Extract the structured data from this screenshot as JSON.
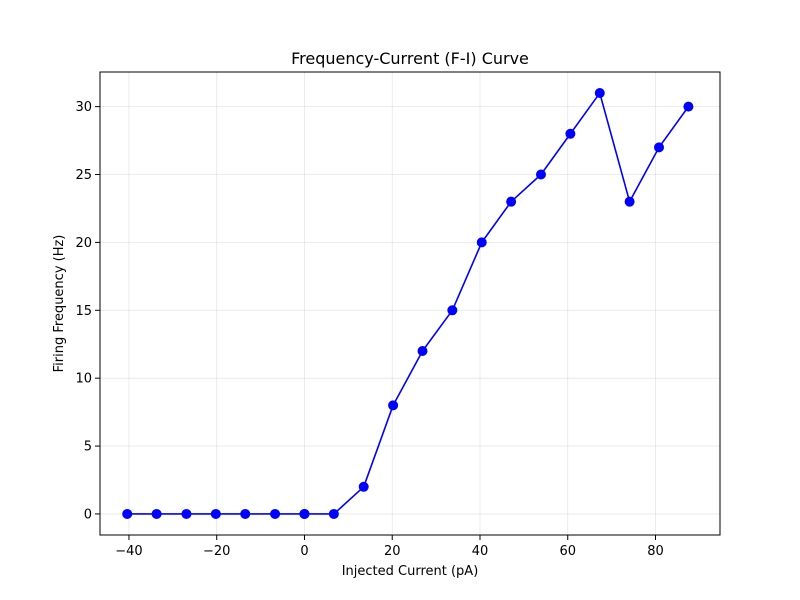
{
  "chart_data": {
    "type": "line",
    "title": "Frequency-Current (F-I) Curve",
    "xlabel": "Injected Current (pA)",
    "ylabel": "Firing Frequency (Hz)",
    "xlim": [
      -46.6,
      94.7
    ],
    "ylim": [
      -1.55,
      32.55
    ],
    "x_ticks": [
      -40,
      -20,
      0,
      20,
      40,
      60,
      80
    ],
    "x_tick_labels": [
      "−40",
      "−20",
      "0",
      "20",
      "40",
      "60",
      "80"
    ],
    "y_ticks": [
      0,
      5,
      10,
      15,
      20,
      25,
      30
    ],
    "y_tick_labels": [
      "0",
      "5",
      "10",
      "15",
      "20",
      "25",
      "30"
    ],
    "grid": true,
    "series": [
      {
        "color": "#0000ff",
        "marker": "circle",
        "x": [
          -40.4,
          -33.7,
          -26.9,
          -20.2,
          -13.5,
          -6.7,
          0,
          0,
          6.7,
          13.5,
          20.2,
          26.9,
          33.7,
          40.4,
          47.1,
          53.9,
          60.6,
          67.3,
          74.1,
          80.8,
          87.5
        ],
        "y": [
          0,
          0,
          0,
          0,
          0,
          0,
          0,
          0,
          0,
          2,
          8,
          12,
          15,
          20,
          23,
          25,
          28,
          31,
          23,
          27,
          30
        ]
      }
    ]
  }
}
